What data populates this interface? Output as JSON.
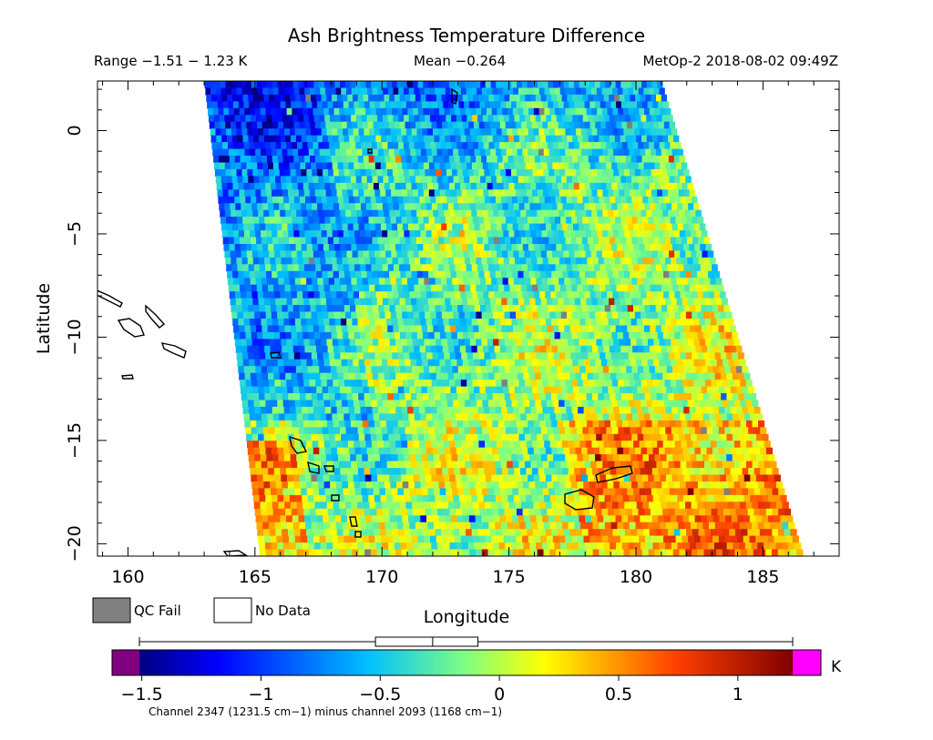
{
  "chart_data": {
    "type": "heatmap",
    "title": "Ash Brightness Temperature Difference",
    "header": {
      "range": "Range −1.51 − 1.23 K",
      "mean": "Mean −0.264",
      "source": "MetOp-2 2018-08-02 09:49Z"
    },
    "xlabel": "Longitude",
    "ylabel": "Latitude",
    "xlim": [
      158.8,
      188.0
    ],
    "ylim": [
      -20.6,
      2.4
    ],
    "x_ticks": [
      {
        "value": 160,
        "label": "160"
      },
      {
        "value": 165,
        "label": "165"
      },
      {
        "value": 170,
        "label": "170"
      },
      {
        "value": 175,
        "label": "175"
      },
      {
        "value": 180,
        "label": "180"
      },
      {
        "value": 185,
        "label": "185"
      }
    ],
    "y_ticks": [
      {
        "value": 0,
        "label": "0"
      },
      {
        "value": -5,
        "label": "−5"
      },
      {
        "value": -10,
        "label": "−10"
      },
      {
        "value": -15,
        "label": "−15"
      },
      {
        "value": -20,
        "label": "−20"
      }
    ],
    "swath": {
      "top_lon": [
        163.0,
        181.0
      ],
      "bottom_lon": [
        165.2,
        186.6
      ]
    },
    "legend": [
      {
        "label": "QC Fail",
        "color": "#808080"
      },
      {
        "label": "No Data",
        "color": "#ffffff"
      }
    ],
    "colorbar": {
      "range": [
        -1.51,
        1.23
      ],
      "unit": "K",
      "under_color": "#800080",
      "over_color": "#ff00ff",
      "ticks": [
        {
          "value": -1.5,
          "label": "−1.5"
        },
        {
          "value": -1.0,
          "label": "−1"
        },
        {
          "value": -0.5,
          "label": "−0.5"
        },
        {
          "value": 0.0,
          "label": "0"
        },
        {
          "value": 0.5,
          "label": "0.5"
        },
        {
          "value": 1.0,
          "label": "1"
        }
      ],
      "caption": "Channel 2347 (1231.5 cm−1) minus channel 2093 (1168 cm−1)"
    },
    "boxplot": {
      "min": -1.51,
      "q1": -0.52,
      "median": -0.28,
      "q3": -0.09,
      "max": 1.23
    }
  }
}
